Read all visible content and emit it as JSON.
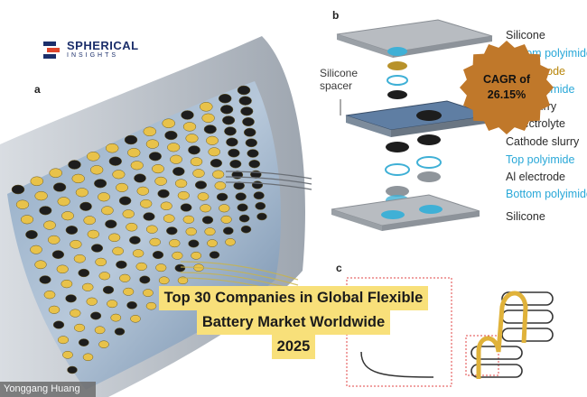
{
  "logo": {
    "name": "SPHERICAL",
    "sub": "INSIGHTS"
  },
  "panels": {
    "a": "a",
    "b": "b",
    "c": "c"
  },
  "credit": "Yonggang Huang",
  "spacer_label": [
    "Silicone",
    "spacer"
  ],
  "layers": [
    {
      "text": "Silicone",
      "color": "black"
    },
    {
      "text": "Bottom polyimide",
      "color": "blue"
    },
    {
      "text": "Al electrode",
      "color": "gold"
    },
    {
      "text": "Top polyimide",
      "color": "blue"
    },
    {
      "text": "Anode slurry",
      "color": "black"
    },
    {
      "text": "Gel electrolyte",
      "color": "black"
    },
    {
      "text": "Cathode slurry",
      "color": "black"
    },
    {
      "text": "Top polyimide",
      "color": "blue"
    },
    {
      "text": "Al electrode",
      "color": "black"
    },
    {
      "text": "Bottom polyimide",
      "color": "blue"
    },
    {
      "text": "Silicone",
      "color": "black"
    }
  ],
  "badge": {
    "line1": "CAGR of",
    "line2": "26.15%",
    "color": "#c0782a"
  },
  "title": {
    "line1": "Top 30 Companies in Global Flexible",
    "line2": "Battery Market Worldwide",
    "line3": "2025"
  },
  "colors": {
    "brand": "#1c2f6b",
    "banner": "#f8e07a",
    "gold_disc": "#e8c24a",
    "dark_disc": "#1d1d1d",
    "blue_disc": "#3fb0d6"
  }
}
